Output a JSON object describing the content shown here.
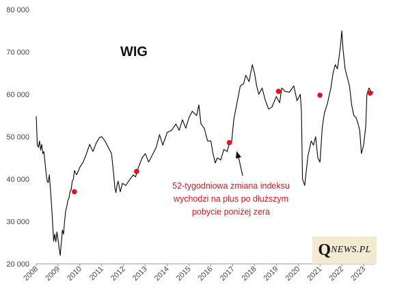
{
  "chart_data": {
    "type": "line",
    "title": "WIG",
    "xlabel": "",
    "ylabel": "",
    "x_ticks": [
      "2008",
      "2009",
      "2010",
      "2011",
      "2012",
      "2013",
      "2014",
      "2015",
      "2016",
      "2017",
      "2018",
      "2019",
      "2020",
      "2021",
      "2022",
      "2023"
    ],
    "y_ticks": [
      "20 000",
      "30 000",
      "40 000",
      "50 000",
      "60 000",
      "70 000",
      "80 000"
    ],
    "ylim": [
      20000,
      80000
    ],
    "xlim": [
      2008.0,
      2023.5
    ],
    "grid": false,
    "series": [
      {
        "color": "#000000",
        "x": [
          2008.0,
          2008.05,
          2008.1,
          2008.15,
          2008.2,
          2008.25,
          2008.3,
          2008.35,
          2008.4,
          2008.45,
          2008.5,
          2008.55,
          2008.6,
          2008.65,
          2008.7,
          2008.75,
          2008.8,
          2008.85,
          2008.9,
          2008.95,
          2009.0,
          2009.05,
          2009.1,
          2009.15,
          2009.2,
          2009.25,
          2009.3,
          2009.35,
          2009.4,
          2009.45,
          2009.5,
          2009.55,
          2009.6,
          2009.65,
          2009.7,
          2009.75,
          2009.85,
          2010.0,
          2010.15,
          2010.3,
          2010.45,
          2010.6,
          2010.75,
          2010.9,
          2011.0,
          2011.15,
          2011.3,
          2011.45,
          2011.55,
          2011.6,
          2011.65,
          2011.7,
          2011.75,
          2011.85,
          2011.95,
          2012.1,
          2012.3,
          2012.45,
          2012.55,
          2012.7,
          2012.85,
          2013.0,
          2013.15,
          2013.35,
          2013.5,
          2013.65,
          2013.8,
          2014.0,
          2014.2,
          2014.4,
          2014.55,
          2014.7,
          2014.85,
          2015.0,
          2015.15,
          2015.35,
          2015.45,
          2015.55,
          2015.7,
          2015.85,
          2016.0,
          2016.1,
          2016.2,
          2016.3,
          2016.45,
          2016.6,
          2016.75,
          2016.85,
          2016.95,
          2017.05,
          2017.2,
          2017.35,
          2017.5,
          2017.6,
          2017.75,
          2017.9,
          2018.0,
          2018.1,
          2018.2,
          2018.35,
          2018.5,
          2018.65,
          2018.8,
          2019.0,
          2019.15,
          2019.25,
          2019.4,
          2019.6,
          2019.8,
          2019.95,
          2020.0,
          2020.1,
          2020.15,
          2020.2,
          2020.3,
          2020.45,
          2020.6,
          2020.7,
          2020.8,
          2020.9,
          2021.0,
          2021.1,
          2021.2,
          2021.35,
          2021.5,
          2021.6,
          2021.7,
          2021.8,
          2021.87,
          2021.95,
          2022.0,
          2022.05,
          2022.15,
          2022.25,
          2022.35,
          2022.45,
          2022.55,
          2022.65,
          2022.75,
          2022.82,
          2022.9,
          2023.0,
          2023.1,
          2023.15,
          2023.25,
          2023.35,
          2023.45
        ],
        "values": [
          54800,
          48000,
          47500,
          49000,
          46800,
          48200,
          46000,
          46500,
          44000,
          41500,
          39500,
          39200,
          41000,
          37500,
          34000,
          29500,
          25300,
          27000,
          25200,
          27500,
          25800,
          23700,
          22000,
          25000,
          28000,
          27000,
          30000,
          32500,
          33500,
          35000,
          35500,
          37000,
          37500,
          39500,
          40000,
          42000,
          41000,
          42800,
          44000,
          46000,
          48200,
          46500,
          48500,
          49800,
          50000,
          49000,
          47500,
          46000,
          41000,
          38000,
          36800,
          38500,
          39500,
          37000,
          39000,
          38500,
          40000,
          41000,
          40500,
          43000,
          45000,
          46000,
          44000,
          46000,
          47500,
          50500,
          48000,
          51000,
          51500,
          53000,
          51500,
          54000,
          52000,
          54500,
          56000,
          55000,
          57500,
          53000,
          52000,
          49000,
          49000,
          46000,
          43800,
          45000,
          44500,
          47000,
          46500,
          48500,
          48600,
          54000,
          58000,
          62000,
          62500,
          64500,
          63000,
          67000,
          65000,
          62000,
          60000,
          61500,
          58500,
          56500,
          57000,
          59500,
          58000,
          61500,
          60700,
          60500,
          62000,
          58500,
          59000,
          60000,
          56000,
          40000,
          38500,
          45500,
          49000,
          48000,
          50000,
          45000,
          44000,
          52000,
          55500,
          58000,
          61500,
          65000,
          67000,
          66000,
          68500,
          72000,
          75000,
          71000,
          66000,
          64000,
          62000,
          57500,
          55000,
          54500,
          53000,
          51500,
          46000,
          48000,
          52500,
          60000,
          61500,
          60500,
          60500
        ]
      }
    ],
    "markers": [
      {
        "x": 2009.75,
        "y": 37000
      },
      {
        "x": 2012.6,
        "y": 41800
      },
      {
        "x": 2016.85,
        "y": 48600
      },
      {
        "x": 2019.1,
        "y": 60700
      },
      {
        "x": 2021.0,
        "y": 59800
      },
      {
        "x": 2023.3,
        "y": 60300
      }
    ],
    "marker_color": "#e8101a",
    "annotation": {
      "lines": [
        "52-tygodniowa zmiana indeksu",
        "wychodzi na plus po dłuższym",
        "pobycie poniżej zera"
      ]
    }
  },
  "logo": {
    "q": "Q",
    "rest": "NEWS.PL"
  }
}
